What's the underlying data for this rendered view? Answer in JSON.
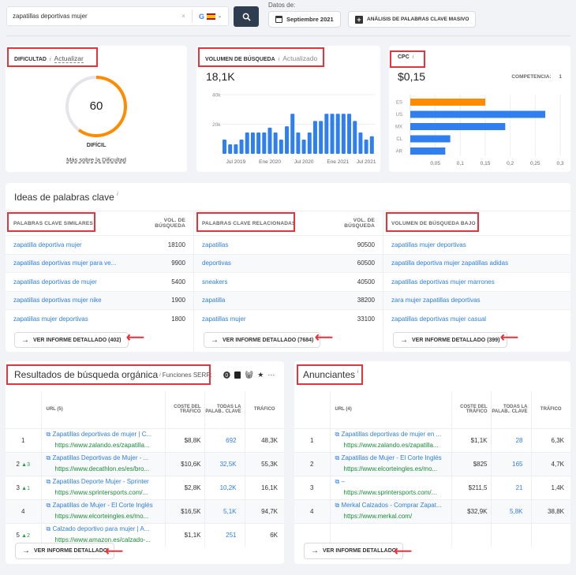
{
  "search": {
    "query": "zapatillas deportivas mujer",
    "clear": "×",
    "engine": "G",
    "country": "ES",
    "date_label": "Datos de:",
    "date": "Septiembre 2021",
    "bulk_button": "ANÁLISIS DE PALABRAS CLAVE MASIVO"
  },
  "difficulty": {
    "title": "DIFICULTAD",
    "info": "i",
    "update": "Actualizar",
    "value": "60",
    "percent": 60,
    "level": "DIFÍCIL",
    "more": "Más sobre la Dificultad",
    "color": "#ff8c00"
  },
  "volume": {
    "title": "VOLUMEN DE BÚSQUEDA",
    "info": "i",
    "status": "Actualizado",
    "value": "18,1K"
  },
  "cpc": {
    "title": "CPC",
    "info": "i",
    "value": "$0,15",
    "competition_label": "COMPETENCIA:",
    "competition": "1"
  },
  "chart_data": [
    {
      "type": "bar",
      "title": "Volumen de búsqueda",
      "ylim": [
        0,
        40000
      ],
      "yticks": [
        "20k",
        "40k"
      ],
      "ytick_values": [
        20000,
        40000
      ],
      "xticks": [
        "Jul 2019",
        "Ene 2020",
        "Jul 2020",
        "Ene 2021",
        "Jul 2021"
      ],
      "xtick_index": [
        2,
        8,
        14,
        20,
        25
      ],
      "values": [
        9600,
        6400,
        6400,
        9600,
        14400,
        14400,
        14400,
        14400,
        17700,
        14400,
        9600,
        18600,
        27100,
        14400,
        9600,
        14400,
        22200,
        22200,
        27100,
        27100,
        27100,
        27100,
        27100,
        22200,
        14400,
        9600,
        11900
      ],
      "color": "#2f7ff0"
    },
    {
      "type": "bar",
      "orientation": "horizontal",
      "title": "CPC por país",
      "categories": [
        "ES",
        "US",
        "MX",
        "CL",
        "AR"
      ],
      "values": [
        0.15,
        0.27,
        0.19,
        0.08,
        0.07
      ],
      "colors": [
        "#ff8c00",
        "#2f7ff0",
        "#2f7ff0",
        "#2f7ff0",
        "#2f7ff0"
      ],
      "xlim": [
        0,
        0.3
      ],
      "xticks": [
        "0,05",
        "0,1",
        "0,15",
        "0,2",
        "0,25",
        "0,3"
      ],
      "xtick_values": [
        0.05,
        0.1,
        0.15,
        0.2,
        0.25,
        0.3
      ]
    }
  ],
  "ideas": {
    "title": "Ideas de palabras clave",
    "info": "i",
    "similar": {
      "header": "PALABRAS CLAVE SIMILARES",
      "vol_header": "VOL. DE BÚSQUEDA",
      "rows": [
        [
          "zapatilla deportiva mujer",
          "18100"
        ],
        [
          "zapatillas deportivas mujer para ve...",
          "9900"
        ],
        [
          "zapatillas deportivas de mujer",
          "5400"
        ],
        [
          "zapatillas deportivas mujer nike",
          "1900"
        ],
        [
          "zapatillas mujer deportivas",
          "1800"
        ]
      ],
      "button": "VER INFORME DETALLADO (402)"
    },
    "related": {
      "header": "PALABRAS CLAVE RELACIONADAS",
      "vol_header": "VOL. DE BÚSQUEDA",
      "rows": [
        [
          "zapatillas",
          "90500"
        ],
        [
          "deportivas",
          "60500"
        ],
        [
          "sneakers",
          "40500"
        ],
        [
          "zapatilla",
          "38200"
        ],
        [
          "zapatillas mujer",
          "33100"
        ]
      ],
      "button": "VER INFORME DETALLADO (7684)"
    },
    "low": {
      "header": "VOLUMEN DE BÚSQUEDA BAJO",
      "rows": [
        "zapatillas mujer deportivas",
        "zapatilla deportiva mujer zapatillas adidas",
        "zapatillas deportivas mujer marrones",
        "zara mujer zapatillas deportivas",
        "zapatillas deportivas mujer casual"
      ],
      "button": "VER INFORME DETALLADO (399)"
    }
  },
  "organic": {
    "title": "Resultados de búsqueda orgánica",
    "info": "i",
    "serp_label": "Funciones SERP:",
    "more": "···",
    "headers": [
      "URL (5)",
      "COSTE DEL TRÁFICO",
      "TODAS LA PALAB.. CLAVE",
      "TRÁFICO"
    ],
    "rows": [
      {
        "pos": "1",
        "change": "",
        "title": "Zapatillas deportivas de mujer | C...",
        "url": "https://www.zalando.es/zapatilla...",
        "cost": "$8,8K",
        "kw": "692",
        "traffic": "48,3K"
      },
      {
        "pos": "2",
        "change": "▲3",
        "title": "Zapatillas Deportivas de Mujer - ...",
        "url": "https://www.decathlon.es/es/bro...",
        "cost": "$10,6K",
        "kw": "32,5K",
        "traffic": "55,3K"
      },
      {
        "pos": "3",
        "change": "▲1",
        "title": "Zapatillas Deporte Mujer - Sprinter",
        "url": "https://www.sprintersports.com/...",
        "cost": "$2,8K",
        "kw": "10,2K",
        "traffic": "16,1K"
      },
      {
        "pos": "4",
        "change": "",
        "title": "Zapatillas de Mujer - El Corte Inglés",
        "url": "https://www.elcorteingles.es/mo...",
        "cost": "$16,5K",
        "kw": "5,1K",
        "traffic": "94,7K"
      },
      {
        "pos": "5",
        "change": "▲2",
        "title": "Calzado deportivo para mujer | A...",
        "url": "https://www.amazon.es/calzado-...",
        "cost": "$1,1K",
        "kw": "251",
        "traffic": "6K"
      }
    ],
    "button": "VER INFORME DETALLADO"
  },
  "ads": {
    "title": "Anunciantes",
    "info": "i",
    "headers": [
      "URL (4)",
      "COSTE DEL TRÁFICO",
      "TODAS LA PALAB.. CLAVE",
      "TRÁFICO"
    ],
    "rows": [
      {
        "pos": "1",
        "title": "Zapatillas deportivas de mujer en ...",
        "url": "https://www.zalando.es/zapatilla...",
        "cost": "$1,1K",
        "kw": "28",
        "traffic": "6,3K"
      },
      {
        "pos": "2",
        "title": "Zapatillas de Mujer - El Corte Inglés",
        "url": "https://www.elcorteingles.es/mo...",
        "cost": "$825",
        "kw": "165",
        "traffic": "4,7K"
      },
      {
        "pos": "3",
        "title": "–",
        "url": "https://www.sprintersports.com/...",
        "cost": "$211,5",
        "kw": "21",
        "traffic": "1,4K"
      },
      {
        "pos": "4",
        "title": "Merkal Calzados - Comprar Zapat...",
        "url": "https://www.merkal.com/",
        "cost": "$32,9K",
        "kw": "5,8K",
        "traffic": "38,8K"
      }
    ],
    "button": "VER INFORME DETALLADO"
  }
}
